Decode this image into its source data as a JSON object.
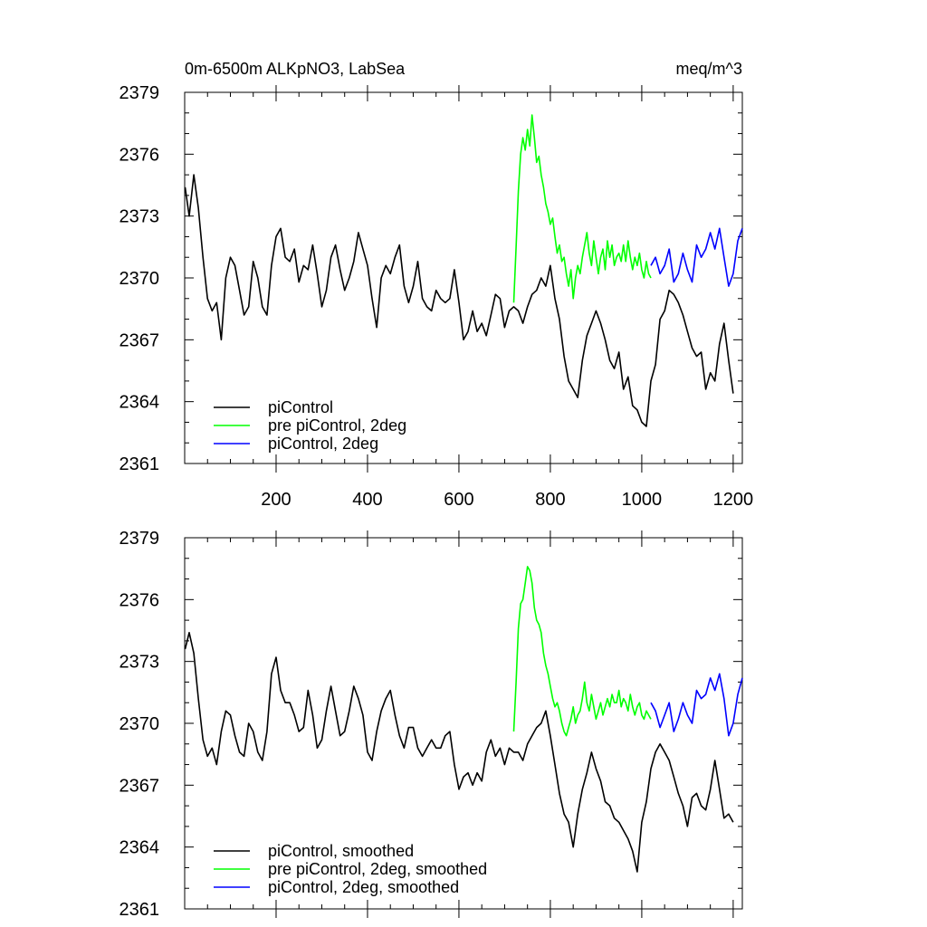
{
  "chart_data": [
    {
      "type": "line",
      "title": "0m-6500m ALKpNO3, LabSea",
      "units": "meq/m^3",
      "xlim": [
        0,
        1220
      ],
      "ylim": [
        2361,
        2379
      ],
      "yticks": [
        2361,
        2364,
        2367,
        2370,
        2373,
        2376,
        2379
      ],
      "xticks": [
        200,
        400,
        600,
        800,
        1000,
        1200
      ],
      "show_xtick_labels": true,
      "legend": "bottom-left",
      "series": [
        {
          "name": "piControl",
          "color": "#000000",
          "x": [
            1,
            10,
            20,
            30,
            40,
            50,
            60,
            70,
            80,
            90,
            100,
            110,
            120,
            130,
            140,
            150,
            160,
            170,
            180,
            190,
            200,
            210,
            220,
            230,
            240,
            250,
            260,
            270,
            280,
            290,
            300,
            310,
            320,
            330,
            340,
            350,
            360,
            370,
            380,
            390,
            400,
            410,
            420,
            430,
            440,
            450,
            460,
            470,
            480,
            490,
            500,
            510,
            520,
            530,
            540,
            550,
            560,
            570,
            580,
            590,
            600,
            610,
            620,
            630,
            640,
            650,
            660,
            670,
            680,
            690,
            700,
            710,
            720,
            730,
            740,
            750,
            760,
            770,
            780,
            790,
            800,
            810,
            820,
            830,
            840,
            850,
            860,
            870,
            880,
            890,
            900,
            910,
            920,
            930,
            940,
            950,
            960,
            970,
            980,
            990,
            1000,
            1010,
            1020,
            1030,
            1040,
            1050,
            1060,
            1070,
            1080,
            1090,
            1100,
            1110,
            1120,
            1130,
            1140,
            1150,
            1160,
            1170,
            1180,
            1190,
            1200
          ],
          "y": [
            2374.4,
            2373.0,
            2375.0,
            2373.4,
            2371.0,
            2369.0,
            2368.4,
            2368.8,
            2367.0,
            2370.0,
            2371.0,
            2370.6,
            2369.4,
            2368.2,
            2368.6,
            2370.8,
            2370.0,
            2368.6,
            2368.2,
            2370.6,
            2372.0,
            2372.4,
            2371.0,
            2370.8,
            2371.4,
            2369.8,
            2370.6,
            2370.4,
            2371.6,
            2370.2,
            2368.6,
            2369.4,
            2371.0,
            2371.6,
            2370.4,
            2369.4,
            2370.0,
            2370.8,
            2372.2,
            2371.4,
            2370.6,
            2369.0,
            2367.6,
            2370.0,
            2370.6,
            2370.2,
            2371.0,
            2371.6,
            2369.6,
            2368.8,
            2369.6,
            2370.8,
            2369.0,
            2368.6,
            2368.4,
            2369.4,
            2369.0,
            2368.8,
            2369.0,
            2370.4,
            2368.8,
            2367.0,
            2367.4,
            2368.4,
            2367.4,
            2367.8,
            2367.2,
            2368.2,
            2369.2,
            2369.0,
            2367.6,
            2368.4,
            2368.6,
            2368.4,
            2367.8,
            2368.6,
            2369.2,
            2369.4,
            2370.0,
            2369.6,
            2370.6,
            2369.0,
            2368.0,
            2366.2,
            2365.0,
            2364.6,
            2364.2,
            2366.0,
            2367.2,
            2367.8,
            2368.4,
            2367.8,
            2367.0,
            2366.0,
            2365.6,
            2366.4,
            2364.6,
            2365.2,
            2363.8,
            2363.6,
            2363.0,
            2362.8,
            2365.0,
            2365.8,
            2368.0,
            2368.4,
            2369.4,
            2369.2,
            2368.8,
            2368.2,
            2367.4,
            2366.6,
            2366.2,
            2366.4,
            2364.6,
            2365.4,
            2365.0,
            2366.8,
            2367.8,
            2366.0,
            2364.4
          ]
        },
        {
          "name": "pre piControl, 2deg",
          "color": "#00ff00",
          "x": [
            720,
            725,
            730,
            735,
            740,
            745,
            750,
            755,
            760,
            765,
            770,
            775,
            780,
            785,
            790,
            795,
            800,
            805,
            810,
            815,
            820,
            825,
            830,
            835,
            840,
            845,
            850,
            855,
            860,
            865,
            870,
            875,
            880,
            885,
            890,
            895,
            900,
            905,
            910,
            915,
            920,
            925,
            930,
            935,
            940,
            945,
            950,
            955,
            960,
            965,
            970,
            975,
            980,
            985,
            990,
            995,
            1000,
            1005,
            1010,
            1015,
            1020
          ],
          "y": [
            2368.8,
            2371.5,
            2374.2,
            2376.0,
            2376.8,
            2376.2,
            2377.2,
            2376.4,
            2377.9,
            2376.8,
            2375.6,
            2375.9,
            2375.0,
            2374.4,
            2373.6,
            2373.2,
            2372.6,
            2372.9,
            2372.0,
            2371.2,
            2371.6,
            2370.8,
            2371.0,
            2370.2,
            2369.6,
            2370.4,
            2369.0,
            2370.0,
            2370.6,
            2370.2,
            2371.0,
            2371.6,
            2372.2,
            2371.2,
            2370.6,
            2371.8,
            2371.0,
            2370.2,
            2371.0,
            2371.4,
            2370.4,
            2371.8,
            2371.0,
            2371.6,
            2370.6,
            2371.0,
            2371.2,
            2370.8,
            2371.6,
            2370.8,
            2371.8,
            2371.0,
            2370.4,
            2371.0,
            2370.6,
            2371.2,
            2370.4,
            2370.0,
            2370.8,
            2370.2,
            2370.0
          ]
        },
        {
          "name": "piControl, 2deg",
          "color": "#0000ff",
          "x": [
            1020,
            1030,
            1040,
            1050,
            1060,
            1070,
            1080,
            1090,
            1100,
            1110,
            1120,
            1130,
            1140,
            1150,
            1160,
            1170,
            1180,
            1190,
            1200,
            1210,
            1220
          ],
          "y": [
            2370.6,
            2371.0,
            2370.2,
            2370.6,
            2371.4,
            2369.8,
            2370.2,
            2371.2,
            2370.4,
            2369.8,
            2371.6,
            2371.0,
            2371.4,
            2372.2,
            2371.4,
            2372.4,
            2371.0,
            2369.6,
            2370.2,
            2371.8,
            2372.4
          ]
        }
      ]
    },
    {
      "type": "line",
      "xlim": [
        0,
        1220
      ],
      "ylim": [
        2361,
        2379
      ],
      "yticks": [
        2361,
        2364,
        2367,
        2370,
        2373,
        2376,
        2379
      ],
      "xticks": [
        200,
        400,
        600,
        800,
        1000,
        1200
      ],
      "show_xtick_labels": false,
      "legend": "bottom-left",
      "series": [
        {
          "name": "piControl, smoothed",
          "color": "#000000",
          "x": [
            1,
            10,
            20,
            30,
            40,
            50,
            60,
            70,
            80,
            90,
            100,
            110,
            120,
            130,
            140,
            150,
            160,
            170,
            180,
            190,
            200,
            210,
            220,
            230,
            240,
            250,
            260,
            270,
            280,
            290,
            300,
            310,
            320,
            330,
            340,
            350,
            360,
            370,
            380,
            390,
            400,
            410,
            420,
            430,
            440,
            450,
            460,
            470,
            480,
            490,
            500,
            510,
            520,
            530,
            540,
            550,
            560,
            570,
            580,
            590,
            600,
            610,
            620,
            630,
            640,
            650,
            660,
            670,
            680,
            690,
            700,
            710,
            720,
            730,
            740,
            750,
            760,
            770,
            780,
            790,
            800,
            810,
            820,
            830,
            840,
            850,
            860,
            870,
            880,
            890,
            900,
            910,
            920,
            930,
            940,
            950,
            960,
            970,
            980,
            990,
            1000,
            1010,
            1020,
            1030,
            1040,
            1050,
            1060,
            1070,
            1080,
            1090,
            1100,
            1110,
            1120,
            1130,
            1140,
            1150,
            1160,
            1170,
            1180,
            1190,
            1200
          ],
          "y": [
            2373.6,
            2374.4,
            2373.4,
            2371.2,
            2369.2,
            2368.4,
            2368.8,
            2368.0,
            2369.6,
            2370.6,
            2370.4,
            2369.4,
            2368.6,
            2368.4,
            2370.0,
            2369.6,
            2368.6,
            2368.2,
            2369.6,
            2372.4,
            2373.2,
            2371.6,
            2371.0,
            2371.0,
            2370.4,
            2369.6,
            2369.8,
            2371.6,
            2370.4,
            2368.8,
            2369.2,
            2370.6,
            2371.8,
            2370.6,
            2369.4,
            2369.6,
            2370.6,
            2371.8,
            2371.2,
            2370.4,
            2368.6,
            2368.2,
            2369.6,
            2370.6,
            2371.2,
            2371.6,
            2370.4,
            2369.4,
            2368.8,
            2369.8,
            2369.8,
            2368.8,
            2368.4,
            2368.8,
            2369.2,
            2368.8,
            2368.8,
            2369.4,
            2369.6,
            2368.0,
            2366.8,
            2367.4,
            2367.6,
            2367.0,
            2367.6,
            2367.2,
            2368.6,
            2369.2,
            2368.4,
            2368.8,
            2368.0,
            2368.8,
            2368.6,
            2368.6,
            2368.2,
            2369.0,
            2369.4,
            2369.8,
            2370.0,
            2370.6,
            2369.4,
            2368.0,
            2366.6,
            2365.6,
            2365.2,
            2364.0,
            2365.6,
            2366.8,
            2367.6,
            2368.6,
            2367.8,
            2367.2,
            2366.2,
            2366.0,
            2365.4,
            2365.2,
            2364.8,
            2364.4,
            2363.8,
            2362.8,
            2365.2,
            2366.2,
            2367.8,
            2368.6,
            2369.0,
            2368.6,
            2368.2,
            2367.4,
            2366.6,
            2366.0,
            2365.0,
            2366.4,
            2366.6,
            2366.0,
            2365.8,
            2366.8,
            2368.2,
            2366.8,
            2365.4,
            2365.6,
            2365.2
          ]
        },
        {
          "name": "pre piControl, 2deg, smoothed",
          "color": "#00ff00",
          "x": [
            720,
            725,
            730,
            735,
            740,
            745,
            750,
            755,
            760,
            765,
            770,
            775,
            780,
            785,
            790,
            795,
            800,
            805,
            810,
            815,
            820,
            825,
            830,
            835,
            840,
            845,
            850,
            855,
            860,
            865,
            870,
            875,
            880,
            885,
            890,
            895,
            900,
            905,
            910,
            915,
            920,
            925,
            930,
            935,
            940,
            945,
            950,
            955,
            960,
            965,
            970,
            975,
            980,
            985,
            990,
            995,
            1000,
            1005,
            1010,
            1015,
            1020
          ],
          "y": [
            2369.6,
            2372.0,
            2374.6,
            2375.8,
            2376.0,
            2376.8,
            2377.6,
            2377.4,
            2376.8,
            2375.6,
            2375.0,
            2374.8,
            2374.4,
            2373.4,
            2372.8,
            2372.4,
            2371.8,
            2371.2,
            2370.8,
            2371.0,
            2370.6,
            2370.0,
            2369.6,
            2369.4,
            2369.8,
            2370.2,
            2370.8,
            2370.0,
            2370.4,
            2370.6,
            2371.2,
            2372.0,
            2371.0,
            2370.6,
            2371.4,
            2370.8,
            2370.2,
            2370.6,
            2371.0,
            2370.4,
            2370.8,
            2371.2,
            2370.8,
            2371.4,
            2371.0,
            2371.0,
            2371.6,
            2370.8,
            2371.2,
            2371.0,
            2370.6,
            2371.4,
            2370.8,
            2370.4,
            2370.8,
            2371.0,
            2370.4,
            2370.2,
            2370.6,
            2370.4,
            2370.2
          ]
        },
        {
          "name": "piControl, 2deg, smoothed",
          "color": "#0000ff",
          "x": [
            1020,
            1030,
            1040,
            1050,
            1060,
            1070,
            1080,
            1090,
            1100,
            1110,
            1120,
            1130,
            1140,
            1150,
            1160,
            1170,
            1180,
            1190,
            1200,
            1210,
            1220
          ],
          "y": [
            2371.0,
            2370.6,
            2369.8,
            2370.4,
            2371.0,
            2369.6,
            2370.2,
            2371.0,
            2370.4,
            2370.0,
            2371.6,
            2371.2,
            2371.4,
            2372.2,
            2371.6,
            2372.4,
            2371.2,
            2369.4,
            2370.0,
            2371.4,
            2372.2
          ]
        }
      ]
    }
  ]
}
